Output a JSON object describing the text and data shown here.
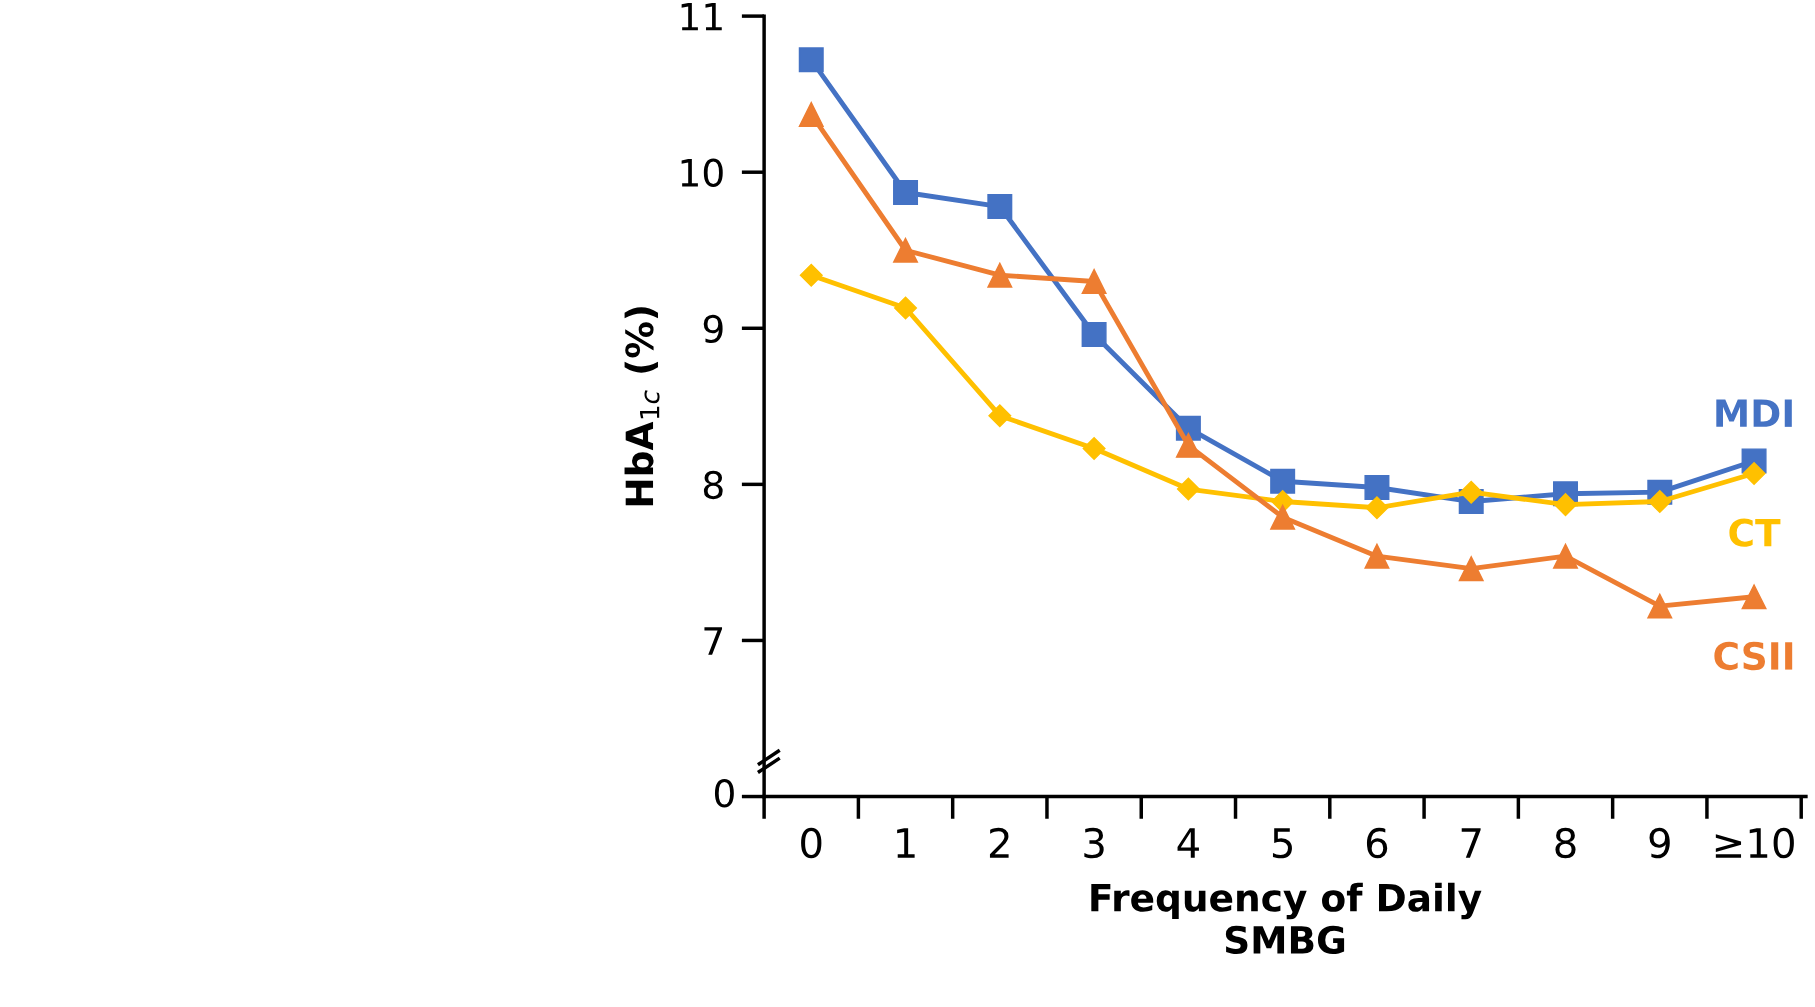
{
  "chart_data": {
    "type": "line",
    "xlabel": "Frequency of Daily\nSMBG",
    "ylabel": "HbA$_{1c}$ (%)",
    "categories": [
      "0",
      "1",
      "2",
      "3",
      "4",
      "5",
      "6",
      "7",
      "8",
      "9",
      "≥10"
    ],
    "ylim": [
      6,
      11
    ],
    "yticks": [
      {
        "value": 6,
        "label": null
      },
      7,
      8,
      9,
      10,
      11
    ],
    "annotations": [
      "0"
    ],
    "grid": false,
    "legend": false,
    "series": [
      {
        "name": "MDI",
        "color": "#4472c4",
        "marker": "square",
        "values": [
          10.72,
          9.87,
          9.78,
          8.96,
          8.36,
          8.02,
          7.98,
          7.89,
          7.94,
          7.95,
          8.15
        ]
      },
      {
        "name": "CT",
        "color": "#ffc000",
        "marker": "diamond",
        "values": [
          9.34,
          9.13,
          8.44,
          8.23,
          7.97,
          7.89,
          7.85,
          7.95,
          7.87,
          7.89,
          8.07
        ]
      },
      {
        "name": "CSII",
        "color": "#ed7d31",
        "marker": "triangle",
        "values": [
          10.37,
          9.5,
          9.34,
          9.3,
          8.25,
          7.79,
          7.54,
          7.46,
          7.54,
          7.22,
          7.28
        ]
      }
    ]
  }
}
